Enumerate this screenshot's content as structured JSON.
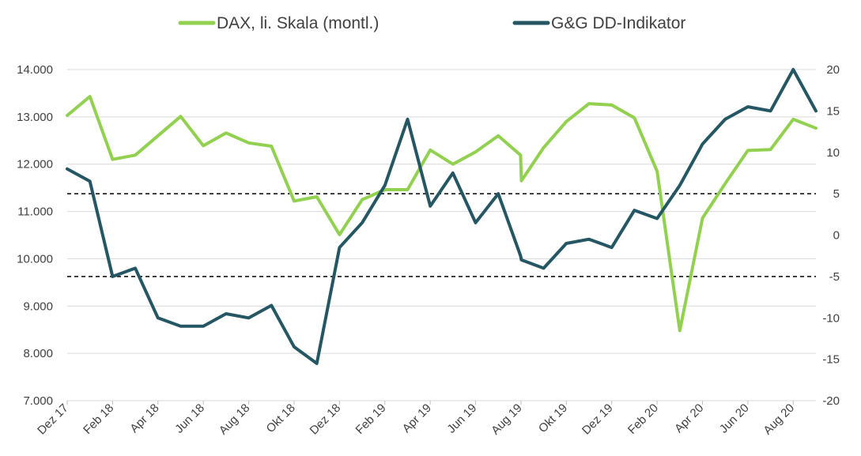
{
  "chart_data": {
    "type": "line",
    "title": "",
    "xlabel": "",
    "ylabel_left": "",
    "ylabel_right": "",
    "legend": "top-center",
    "grid": true,
    "x_tick_labels": [
      "Dez 17",
      "Feb 18",
      "Apr 18",
      "Jun 18",
      "Aug 18",
      "Okt 18",
      "Dez 18",
      "Feb 19",
      "Apr 19",
      "Jun 19",
      "Aug 19",
      "Okt 19",
      "Dez 19",
      "Feb 20",
      "Apr 20",
      "Jun 20",
      "Aug 20"
    ],
    "y_left": {
      "ylim": [
        7000,
        14000
      ],
      "ticks": [
        7000,
        8000,
        9000,
        10000,
        11000,
        12000,
        13000,
        14000
      ],
      "tick_labels": [
        "7.000",
        "8.000",
        "9.000",
        "10.000",
        "11.000",
        "12.000",
        "13.000",
        "14.000"
      ]
    },
    "y_right": {
      "ylim": [
        -20,
        20
      ],
      "ticks": [
        -20,
        -15,
        -10,
        -5,
        0,
        5,
        10,
        15,
        20
      ],
      "tick_labels": [
        "-20",
        "-15",
        "-10",
        "-5",
        "0",
        "5",
        "10",
        "15",
        "20"
      ]
    },
    "threshold_lines": [
      {
        "axis": "right",
        "value": 5,
        "style": "dashed",
        "color": "#000000"
      },
      {
        "axis": "right",
        "value": -5,
        "style": "dashed",
        "color": "#000000"
      }
    ],
    "series": [
      {
        "name": "DAX, li. Skala (montl.)",
        "axis": "left",
        "color": "#92D050",
        "x": [
          0,
          1,
          2,
          3,
          4,
          5,
          6,
          7,
          8,
          9,
          10,
          11,
          12,
          13,
          14,
          15,
          16,
          17,
          18,
          19,
          19.98,
          20.02,
          21,
          22,
          23,
          24,
          25,
          26,
          27,
          28,
          29,
          30,
          31,
          32,
          33
        ],
        "values": [
          13030,
          13430,
          12100,
          12190,
          12600,
          13010,
          12390,
          12660,
          12450,
          12380,
          11220,
          11310,
          10510,
          11250,
          11460,
          11460,
          12300,
          12000,
          12260,
          12600,
          12190,
          11650,
          12350,
          12900,
          13280,
          13250,
          12980,
          11850,
          8480,
          10860,
          11590,
          12290,
          12310,
          12950,
          12760
        ]
      },
      {
        "name": "G&G DD-Indikator",
        "axis": "right",
        "color": "#245763",
        "x": [
          0,
          1,
          2,
          3,
          4,
          5,
          6,
          7,
          8,
          9,
          10,
          11,
          12,
          13,
          14,
          15,
          16,
          17,
          18,
          19,
          19.98,
          20.02,
          21,
          22,
          23,
          24,
          25,
          26,
          27,
          28,
          29,
          30,
          31,
          32,
          33
        ],
        "values": [
          8,
          6.5,
          -5,
          -4,
          -10,
          -11,
          -11,
          -9.5,
          -10,
          -8.5,
          -13.5,
          -15.5,
          -1.5,
          1.5,
          6,
          14,
          3.5,
          7.5,
          1.5,
          5,
          -2.5,
          -3,
          -4,
          -1,
          -0.5,
          -1.5,
          3,
          2,
          6,
          11,
          14,
          15.5,
          15,
          20,
          15
        ]
      }
    ]
  }
}
